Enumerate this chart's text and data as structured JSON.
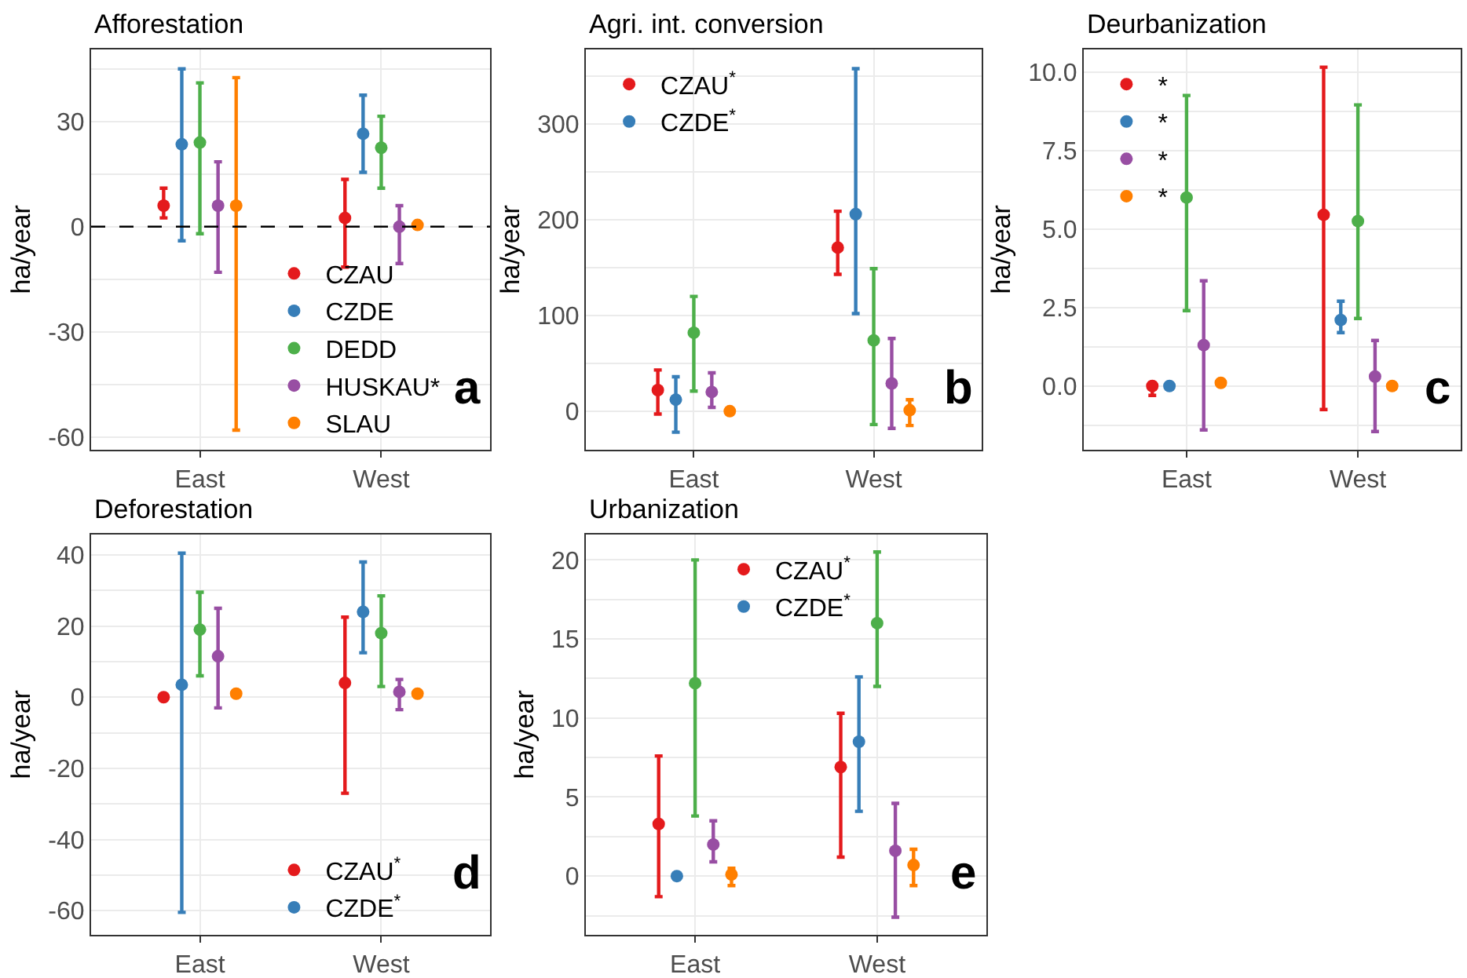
{
  "chart_data": [
    {
      "type": "scatter",
      "title": "Afforestation",
      "ylabel": "ha/year",
      "categories": [
        "East",
        "West"
      ],
      "marker": "circle",
      "grid": true,
      "legend": "bottom right",
      "ylim": [
        -63.5,
        50.5
      ],
      "yticks": [
        -60,
        {
          "value": -45,
          "label": null
        },
        -30,
        {
          "value": -15,
          "label": null
        },
        0,
        {
          "value": 15,
          "label": null
        },
        30,
        {
          "value": 45,
          "label": null
        }
      ],
      "ref_lines": [
        {
          "axis": "y",
          "value": 0,
          "color": "#000000",
          "line_style": "dashed"
        }
      ],
      "annotations": [
        "a"
      ],
      "series": [
        {
          "name": "CZAU",
          "color": "#e41a1c",
          "values": [
            6,
            2.5
          ],
          "errors": [
            [
              2.5,
              11
            ],
            [
              -11.5,
              13.5
            ]
          ]
        },
        {
          "name": "CZDE",
          "color": "#377eb8",
          "values": [
            23.5,
            26.5
          ],
          "errors": [
            [
              -4,
              45
            ],
            [
              15.5,
              37.5
            ]
          ]
        },
        {
          "name": "DEDD",
          "color": "#4daf4a",
          "values": [
            24,
            22.5
          ],
          "errors": [
            [
              -2,
              41
            ],
            [
              11,
              31.5
            ]
          ]
        },
        {
          "name": "HUSKAU*",
          "color": "#984ea3",
          "values": [
            6,
            0
          ],
          "errors": [
            [
              -13,
              18.5
            ],
            [
              -10.5,
              6
            ]
          ]
        },
        {
          "name": "SLAU",
          "color": "#ff7f00",
          "values": [
            6,
            0.5
          ],
          "errors": [
            [
              -58,
              42.5
            ],
            null
          ]
        }
      ]
    },
    {
      "type": "scatter",
      "title": "Agri. int. conversion",
      "ylabel": "ha/year",
      "categories": [
        "East",
        "West"
      ],
      "marker": "circle",
      "grid": true,
      "legend": "top left",
      "ylim": [
        -40,
        378
      ],
      "yticks": [
        0,
        {
          "value": 50,
          "label": null
        },
        100,
        {
          "value": 150,
          "label": null
        },
        200,
        {
          "value": 250,
          "label": null
        },
        300,
        {
          "value": 350,
          "label": null
        }
      ],
      "annotations": [
        "b"
      ],
      "series": [
        {
          "name": "CZAU$^{*}$",
          "color": "#e41a1c",
          "values": [
            22,
            171
          ],
          "errors": [
            [
              -3,
              43
            ],
            [
              143,
              209
            ]
          ]
        },
        {
          "name": "CZDE$^{*}$",
          "color": "#377eb8",
          "values": [
            12,
            206
          ],
          "errors": [
            [
              -22,
              36
            ],
            [
              102,
              358
            ]
          ]
        },
        {
          "color": "#4daf4a",
          "values": [
            82,
            74
          ],
          "errors": [
            [
              21,
              120
            ],
            [
              -14,
              149
            ]
          ]
        },
        {
          "color": "#984ea3",
          "values": [
            20,
            29
          ],
          "errors": [
            [
              4,
              40
            ],
            [
              -18,
              76
            ]
          ]
        },
        {
          "color": "#ff7f00",
          "values": [
            0,
            1
          ],
          "errors": [
            null,
            [
              -15,
              12
            ]
          ]
        }
      ]
    },
    {
      "type": "scatter",
      "title": "Deurbanization",
      "ylabel": "ha/year",
      "categories": [
        "East",
        "West"
      ],
      "marker": "circle",
      "grid": true,
      "legend": "top left",
      "ylim": [
        -2.02,
        10.71
      ],
      "yticks": [
        {
          "value": -1.25,
          "label": null
        },
        {
          "value": 0,
          "label": "0.0"
        },
        {
          "value": 1.25,
          "label": null
        },
        2.5,
        {
          "value": 3.75,
          "label": null
        },
        {
          "value": 5,
          "label": "5.0"
        },
        {
          "value": 6.25,
          "label": null
        },
        7.5,
        {
          "value": 8.75,
          "label": null
        },
        {
          "value": 10,
          "label": "10.0"
        }
      ],
      "annotations": [
        "c"
      ],
      "series": [
        {
          "name": "*",
          "color": "#e41a1c",
          "values": [
            0,
            5.45
          ],
          "errors": [
            [
              -0.3,
              0.1
            ],
            [
              -0.75,
              10.15
            ]
          ]
        },
        {
          "name": "*",
          "color": "#377eb8",
          "values": [
            0,
            2.1
          ],
          "errors": [
            null,
            [
              1.7,
              2.7
            ]
          ]
        },
        {
          "color": "#4daf4a",
          "values": [
            6,
            5.25
          ],
          "errors": [
            [
              2.4,
              9.25
            ],
            [
              2.15,
              8.95
            ]
          ]
        },
        {
          "name": "*",
          "color": "#984ea3",
          "values": [
            1.3,
            0.3
          ],
          "errors": [
            [
              -1.4,
              3.35
            ],
            [
              -1.45,
              1.45
            ]
          ]
        },
        {
          "name": "*",
          "color": "#ff7f00",
          "values": [
            0.1,
            0
          ],
          "errors": [
            null,
            null
          ]
        }
      ]
    },
    {
      "type": "scatter",
      "title": "Deforestation",
      "ylabel": "ha/year",
      "categories": [
        "East",
        "West"
      ],
      "marker": "circle",
      "grid": true,
      "legend": "bottom right",
      "ylim": [
        -66.7,
        45.7
      ],
      "yticks": [
        -60,
        {
          "value": -50,
          "label": null
        },
        -40,
        {
          "value": -30,
          "label": null
        },
        -20,
        {
          "value": -10,
          "label": null
        },
        0,
        {
          "value": 10,
          "label": null
        },
        20,
        {
          "value": 30,
          "label": null
        },
        40
      ],
      "annotations": [
        "d"
      ],
      "series": [
        {
          "name": "CZAU$^{*}$",
          "color": "#e41a1c",
          "values": [
            0,
            4
          ],
          "errors": [
            null,
            [
              -27,
              22.5
            ]
          ]
        },
        {
          "name": "CZDE$^{*}$",
          "color": "#377eb8",
          "values": [
            3.5,
            24
          ],
          "errors": [
            [
              -60.5,
              40.5
            ],
            [
              12.5,
              38
            ]
          ]
        },
        {
          "color": "#4daf4a",
          "values": [
            19,
            18
          ],
          "errors": [
            [
              6,
              29.5
            ],
            [
              3,
              28.5
            ]
          ]
        },
        {
          "color": "#984ea3",
          "values": [
            11.5,
            1.5
          ],
          "errors": [
            [
              -3,
              25
            ],
            [
              -3.5,
              5
            ]
          ]
        },
        {
          "color": "#ff7f00",
          "values": [
            1,
            1
          ],
          "errors": [
            null,
            null
          ]
        }
      ]
    },
    {
      "type": "scatter",
      "title": "Urbanization",
      "ylabel": "ha/year",
      "categories": [
        "East",
        "West"
      ],
      "marker": "circle",
      "grid": true,
      "legend": "top",
      "ylim": [
        -3.69,
        21.6
      ],
      "yticks": [
        {
          "value": -2.5,
          "label": null
        },
        0,
        {
          "value": 2.5,
          "label": null
        },
        5,
        {
          "value": 7.5,
          "label": null
        },
        10,
        {
          "value": 12.5,
          "label": null
        },
        15,
        {
          "value": 17.5,
          "label": null
        },
        20
      ],
      "annotations": [
        "e"
      ],
      "series": [
        {
          "name": "CZAU$^{*}$",
          "color": "#e41a1c",
          "values": [
            3.3,
            6.9
          ],
          "errors": [
            [
              -1.3,
              7.6
            ],
            [
              1.2,
              10.3
            ]
          ]
        },
        {
          "name": "CZDE$^{*}$",
          "color": "#377eb8",
          "values": [
            0,
            8.5
          ],
          "errors": [
            [
              -0.2,
              0.1
            ],
            [
              4.1,
              12.6
            ]
          ]
        },
        {
          "color": "#4daf4a",
          "values": [
            12.2,
            16
          ],
          "errors": [
            [
              3.8,
              20
            ],
            [
              12,
              20.5
            ]
          ]
        },
        {
          "color": "#984ea3",
          "values": [
            2,
            1.6
          ],
          "errors": [
            [
              0.9,
              3.5
            ],
            [
              -2.6,
              4.6
            ]
          ]
        },
        {
          "color": "#ff7f00",
          "values": [
            0.1,
            0.7
          ],
          "errors": [
            [
              -0.6,
              0.5
            ],
            [
              -0.6,
              1.7
            ]
          ]
        }
      ]
    }
  ]
}
